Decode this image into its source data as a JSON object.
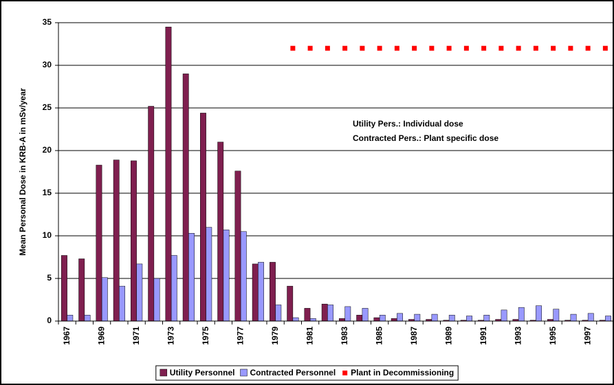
{
  "chart_data": {
    "type": "bar",
    "y_label": "Mean Personal Dose in KRB-A in mSv/year",
    "annotations": [
      "Utility Pers.: Individual dose",
      "Contracted Pers.: Plant specific dose"
    ],
    "categories": [
      "1967",
      null,
      "1969",
      null,
      "1971",
      null,
      "1973",
      null,
      "1975",
      null,
      "1977",
      null,
      "1979",
      null,
      "1981",
      null,
      "1983",
      null,
      "1985",
      null,
      "1987",
      null,
      "1989",
      null,
      "1991",
      null,
      "1993",
      null,
      "1995",
      null,
      "1997",
      null
    ],
    "series": [
      {
        "name": "Utility Personnel",
        "color": "#7f1f4f",
        "values": [
          7.7,
          7.3,
          18.3,
          18.9,
          18.8,
          25.2,
          34.5,
          29.0,
          24.4,
          21.0,
          17.6,
          6.7,
          6.9,
          4.1,
          1.5,
          2.0,
          0.3,
          0.7,
          0.4,
          0.3,
          0.2,
          0.2,
          0.1,
          0.1,
          0.1,
          0.2,
          0.2,
          0.1,
          0.2,
          0.1,
          0.1,
          0.1
        ]
      },
      {
        "name": "Contracted Personnel",
        "color": "#9999ff",
        "values": [
          0.7,
          0.7,
          5.1,
          4.1,
          6.7,
          5.0,
          7.7,
          10.3,
          11.0,
          10.7,
          10.5,
          6.9,
          1.9,
          0.4,
          0.3,
          1.9,
          1.7,
          1.5,
          0.7,
          0.9,
          0.8,
          0.8,
          0.7,
          0.6,
          0.7,
          1.3,
          1.6,
          1.8,
          1.4,
          0.8,
          0.9,
          0.6
        ]
      },
      {
        "name": "Plant in Decommissioning",
        "color": "#ff0000",
        "type": "dots",
        "values": [
          null,
          null,
          null,
          null,
          null,
          null,
          null,
          null,
          null,
          null,
          null,
          null,
          null,
          32,
          32,
          32,
          32,
          32,
          32,
          32,
          32,
          32,
          32,
          32,
          32,
          32,
          32,
          32,
          32,
          32,
          32,
          32
        ]
      }
    ],
    "ylim": [
      0,
      35
    ],
    "yticks": [
      0,
      5,
      10,
      15,
      20,
      25,
      30,
      35
    ],
    "grid": true
  }
}
